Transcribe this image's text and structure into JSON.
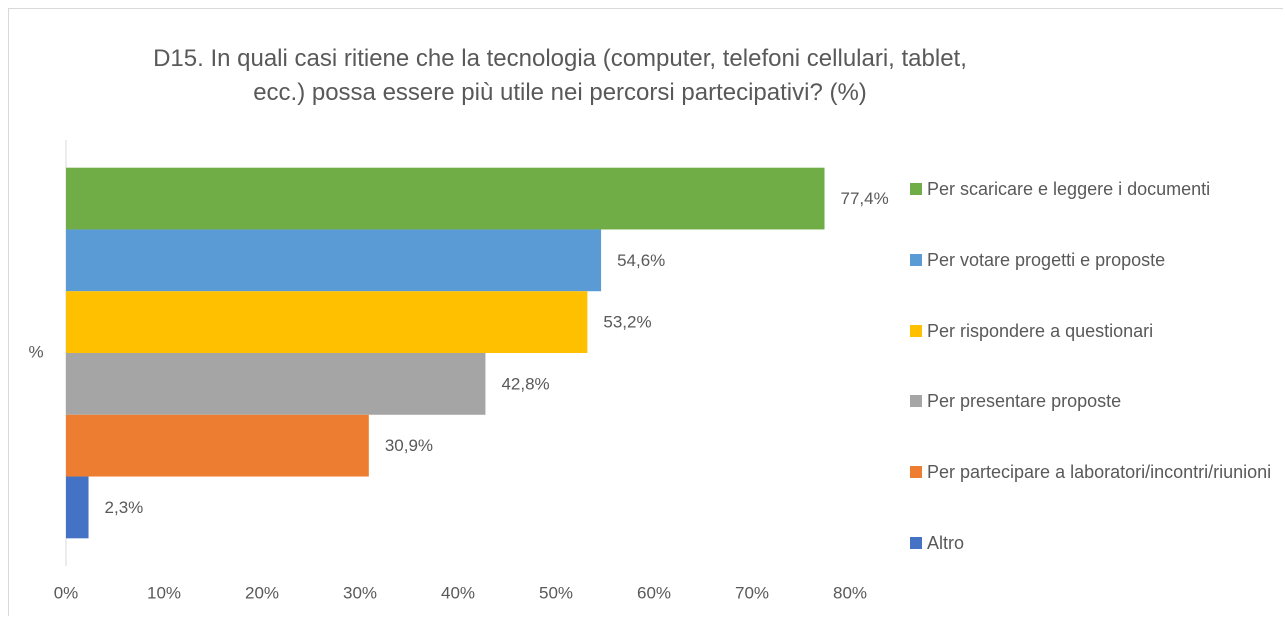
{
  "chart_data": {
    "type": "bar",
    "orientation": "horizontal",
    "title": "D15. In quali casi ritiene che la tecnologia (computer, telefoni cellulari, tablet, ecc.) possa essere più utile nei percorsi partecipativi? (%)",
    "categories": [
      "%"
    ],
    "series": [
      {
        "name": "Per scaricare e leggere i documenti",
        "color": "#70ad47",
        "values": [
          77.4
        ],
        "value_labels": [
          "77,4%"
        ]
      },
      {
        "name": "Per votare progetti e proposte",
        "color": "#5b9bd5",
        "values": [
          54.6
        ],
        "value_labels": [
          "54,6%"
        ]
      },
      {
        "name": "Per rispondere a questionari",
        "color": "#ffc000",
        "values": [
          53.2
        ],
        "value_labels": [
          "53,2%"
        ]
      },
      {
        "name": "Per presentare proposte",
        "color": "#a5a5a5",
        "values": [
          42.8
        ],
        "value_labels": [
          "42,8%"
        ]
      },
      {
        "name": "Per partecipare a laboratori/incontri/riunioni",
        "color": "#ed7d31",
        "values": [
          30.9
        ],
        "value_labels": [
          "30,9%"
        ]
      },
      {
        "name": "Altro",
        "color": "#4472c4",
        "values": [
          2.3
        ],
        "value_labels": [
          "2,3%"
        ]
      }
    ],
    "xlim": [
      0,
      80
    ],
    "xticks": [
      {
        "value": 0,
        "label": "0%"
      },
      {
        "value": 10,
        "label": "10%"
      },
      {
        "value": 20,
        "label": "20%"
      },
      {
        "value": 30,
        "label": "30%"
      },
      {
        "value": 40,
        "label": "40%"
      },
      {
        "value": 50,
        "label": "50%"
      },
      {
        "value": 60,
        "label": "60%"
      },
      {
        "value": 70,
        "label": "70%"
      },
      {
        "value": 80,
        "label": "80%"
      }
    ],
    "grid": false,
    "legend": "right"
  }
}
